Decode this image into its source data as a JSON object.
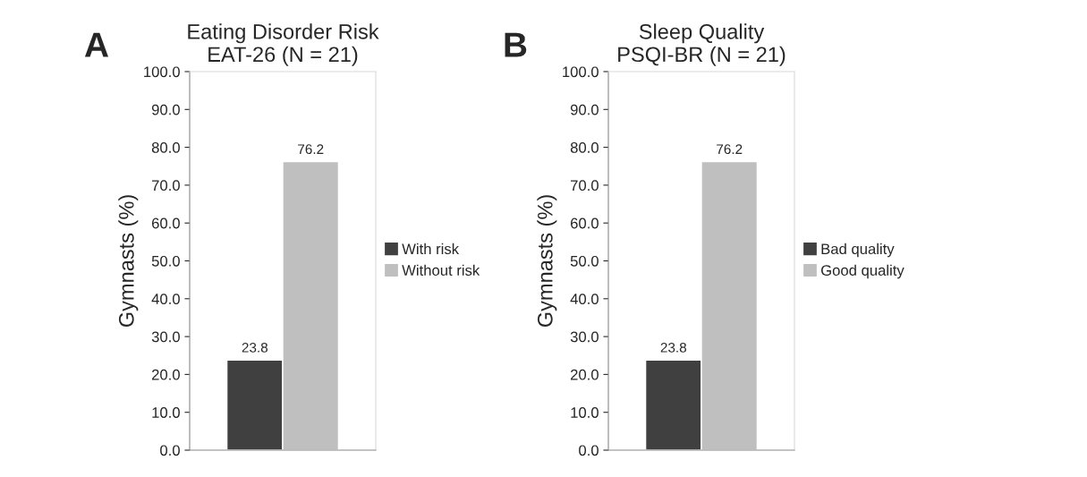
{
  "chart_data": [
    {
      "type": "bar",
      "title": "Eating Disorder Risk\nEAT-26 (N = 21)",
      "ylabel": "Gymnasts (%)",
      "annotations": [
        "A"
      ],
      "categories": [
        null
      ],
      "series": [
        {
          "name": "With risk",
          "color": "#404040",
          "values": [
            23.8
          ]
        },
        {
          "name": "Without risk",
          "color": "#bfbfbf",
          "values": [
            76.2
          ]
        }
      ],
      "ylim": [
        0,
        100
      ],
      "yticks": [
        {
          "value": 0,
          "label": "0.0"
        },
        {
          "value": 10,
          "label": "10.0"
        },
        {
          "value": 20,
          "label": "20.0"
        },
        {
          "value": 30,
          "label": "30.0"
        },
        {
          "value": 40,
          "label": "40.0"
        },
        {
          "value": 50,
          "label": "50.0"
        },
        {
          "value": 60,
          "label": "60.0"
        },
        {
          "value": 70,
          "label": "70.0"
        },
        {
          "value": 80,
          "label": "80.0"
        },
        {
          "value": 90,
          "label": "90.0"
        },
        {
          "value": 100,
          "label": "100.0"
        }
      ],
      "data_labels": true,
      "legend": "right",
      "grid": false
    },
    {
      "type": "bar",
      "title": "Sleep Quality\nPSQI-BR (N = 21)",
      "ylabel": "Gymnasts (%)",
      "annotations": [
        "B"
      ],
      "categories": [
        null
      ],
      "series": [
        {
          "name": "Bad quality",
          "color": "#404040",
          "values": [
            23.8
          ]
        },
        {
          "name": "Good quality",
          "color": "#bfbfbf",
          "values": [
            76.2
          ]
        }
      ],
      "ylim": [
        0,
        100
      ],
      "yticks": [
        {
          "value": 0,
          "label": "0.0"
        },
        {
          "value": 10,
          "label": "10.0"
        },
        {
          "value": 20,
          "label": "20.0"
        },
        {
          "value": 30,
          "label": "30.0"
        },
        {
          "value": 40,
          "label": "40.0"
        },
        {
          "value": 50,
          "label": "50.0"
        },
        {
          "value": 60,
          "label": "60.0"
        },
        {
          "value": 70,
          "label": "70.0"
        },
        {
          "value": 80,
          "label": "80.0"
        },
        {
          "value": 90,
          "label": "90.0"
        },
        {
          "value": 100,
          "label": "100.0"
        }
      ],
      "data_labels": true,
      "legend": "right",
      "grid": false
    }
  ]
}
